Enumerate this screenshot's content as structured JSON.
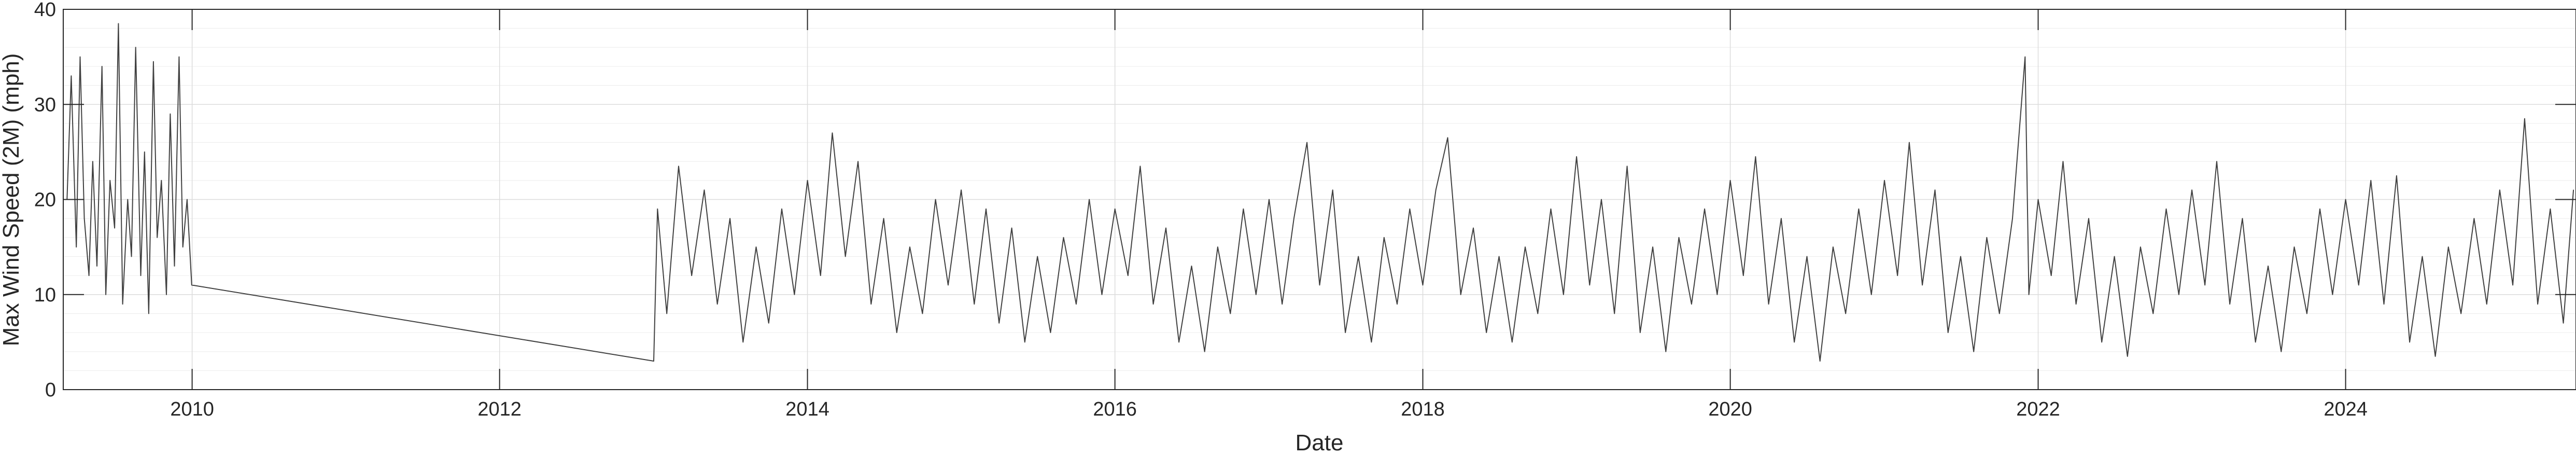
{
  "chart_data": {
    "type": "line",
    "title": "",
    "xlabel": "Date",
    "ylabel": "Max Wind Speed (2M) (mph)",
    "xlim": [
      "2009-03-01",
      "2025-07-01"
    ],
    "ylim": [
      0,
      40
    ],
    "x_ticks": [
      "2010",
      "2012",
      "2014",
      "2016",
      "2018",
      "2020",
      "2022",
      "2024"
    ],
    "y_ticks": [
      0,
      10,
      20,
      30,
      40
    ],
    "grid": true,
    "minor_grid": true,
    "line_color": "#404040",
    "series": [
      {
        "values_note_free": true,
        "points": [
          [
            "2009-03-10",
            20
          ],
          [
            "2009-03-20",
            33
          ],
          [
            "2009-04-01",
            15
          ],
          [
            "2009-04-10",
            35
          ],
          [
            "2009-04-20",
            18
          ],
          [
            "2009-05-01",
            12
          ],
          [
            "2009-05-10",
            24
          ],
          [
            "2009-05-20",
            13
          ],
          [
            "2009-06-01",
            34
          ],
          [
            "2009-06-10",
            10
          ],
          [
            "2009-06-20",
            22
          ],
          [
            "2009-07-01",
            17
          ],
          [
            "2009-07-10",
            38.5
          ],
          [
            "2009-07-20",
            9
          ],
          [
            "2009-08-01",
            20
          ],
          [
            "2009-08-10",
            14
          ],
          [
            "2009-08-20",
            36
          ],
          [
            "2009-09-01",
            12
          ],
          [
            "2009-09-10",
            25
          ],
          [
            "2009-09-20",
            8
          ],
          [
            "2009-10-01",
            34.5
          ],
          [
            "2009-10-10",
            16
          ],
          [
            "2009-10-20",
            22
          ],
          [
            "2009-11-01",
            10
          ],
          [
            "2009-11-10",
            29
          ],
          [
            "2009-11-20",
            13
          ],
          [
            "2009-12-01",
            35
          ],
          [
            "2009-12-10",
            15
          ],
          [
            "2009-12-20",
            20
          ],
          [
            "2009-12-31",
            11
          ],
          [
            "2013-01-01",
            3
          ],
          [
            "2013-01-10",
            19
          ],
          [
            "2013-02-01",
            8
          ],
          [
            "2013-03-01",
            23.5
          ],
          [
            "2013-04-01",
            12
          ],
          [
            "2013-05-01",
            21
          ],
          [
            "2013-06-01",
            9
          ],
          [
            "2013-07-01",
            18
          ],
          [
            "2013-08-01",
            5
          ],
          [
            "2013-09-01",
            15
          ],
          [
            "2013-10-01",
            7
          ],
          [
            "2013-11-01",
            19
          ],
          [
            "2013-12-01",
            10
          ],
          [
            "2014-01-01",
            22
          ],
          [
            "2014-02-01",
            12
          ],
          [
            "2014-03-01",
            27
          ],
          [
            "2014-04-01",
            14
          ],
          [
            "2014-05-01",
            24
          ],
          [
            "2014-06-01",
            9
          ],
          [
            "2014-07-01",
            18
          ],
          [
            "2014-08-01",
            6
          ],
          [
            "2014-09-01",
            15
          ],
          [
            "2014-10-01",
            8
          ],
          [
            "2014-11-01",
            20
          ],
          [
            "2014-12-01",
            11
          ],
          [
            "2015-01-01",
            21
          ],
          [
            "2015-02-01",
            9
          ],
          [
            "2015-03-01",
            19
          ],
          [
            "2015-04-01",
            7
          ],
          [
            "2015-05-01",
            17
          ],
          [
            "2015-06-01",
            5
          ],
          [
            "2015-07-01",
            14
          ],
          [
            "2015-08-01",
            6
          ],
          [
            "2015-09-01",
            16
          ],
          [
            "2015-10-01",
            9
          ],
          [
            "2015-11-01",
            20
          ],
          [
            "2015-12-01",
            10
          ],
          [
            "2016-01-01",
            19
          ],
          [
            "2016-02-01",
            12
          ],
          [
            "2016-03-01",
            23.5
          ],
          [
            "2016-04-01",
            9
          ],
          [
            "2016-05-01",
            17
          ],
          [
            "2016-06-01",
            5
          ],
          [
            "2016-07-01",
            13
          ],
          [
            "2016-08-01",
            4
          ],
          [
            "2016-09-01",
            15
          ],
          [
            "2016-10-01",
            8
          ],
          [
            "2016-11-01",
            19
          ],
          [
            "2016-12-01",
            10
          ],
          [
            "2017-01-01",
            20
          ],
          [
            "2017-02-01",
            9
          ],
          [
            "2017-03-01",
            18
          ],
          [
            "2017-04-01",
            26
          ],
          [
            "2017-05-01",
            11
          ],
          [
            "2017-06-01",
            21
          ],
          [
            "2017-07-01",
            6
          ],
          [
            "2017-08-01",
            14
          ],
          [
            "2017-09-01",
            5
          ],
          [
            "2017-10-01",
            16
          ],
          [
            "2017-11-01",
            9
          ],
          [
            "2017-12-01",
            19
          ],
          [
            "2018-01-01",
            11
          ],
          [
            "2018-02-01",
            21
          ],
          [
            "2018-03-01",
            26.5
          ],
          [
            "2018-04-01",
            10
          ],
          [
            "2018-05-01",
            17
          ],
          [
            "2018-06-01",
            6
          ],
          [
            "2018-07-01",
            14
          ],
          [
            "2018-08-01",
            5
          ],
          [
            "2018-09-01",
            15
          ],
          [
            "2018-10-01",
            8
          ],
          [
            "2018-11-01",
            19
          ],
          [
            "2018-12-01",
            10
          ],
          [
            "2019-01-01",
            24.5
          ],
          [
            "2019-02-01",
            11
          ],
          [
            "2019-03-01",
            20
          ],
          [
            "2019-04-01",
            8
          ],
          [
            "2019-05-01",
            23.5
          ],
          [
            "2019-06-01",
            6
          ],
          [
            "2019-07-01",
            15
          ],
          [
            "2019-08-01",
            4
          ],
          [
            "2019-09-01",
            16
          ],
          [
            "2019-10-01",
            9
          ],
          [
            "2019-11-01",
            19
          ],
          [
            "2019-12-01",
            10
          ],
          [
            "2020-01-01",
            22
          ],
          [
            "2020-02-01",
            12
          ],
          [
            "2020-03-01",
            24.5
          ],
          [
            "2020-04-01",
            9
          ],
          [
            "2020-05-01",
            18
          ],
          [
            "2020-06-01",
            5
          ],
          [
            "2020-07-01",
            14
          ],
          [
            "2020-08-01",
            3
          ],
          [
            "2020-09-01",
            15
          ],
          [
            "2020-10-01",
            8
          ],
          [
            "2020-11-01",
            19
          ],
          [
            "2020-12-01",
            10
          ],
          [
            "2021-01-01",
            22
          ],
          [
            "2021-02-01",
            12
          ],
          [
            "2021-03-01",
            26
          ],
          [
            "2021-04-01",
            11
          ],
          [
            "2021-05-01",
            21
          ],
          [
            "2021-06-01",
            6
          ],
          [
            "2021-07-01",
            14
          ],
          [
            "2021-08-01",
            4
          ],
          [
            "2021-09-01",
            16
          ],
          [
            "2021-10-01",
            8
          ],
          [
            "2021-11-01",
            18
          ],
          [
            "2021-12-01",
            35
          ],
          [
            "2021-12-10",
            10
          ],
          [
            "2022-01-01",
            20
          ],
          [
            "2022-02-01",
            12
          ],
          [
            "2022-03-01",
            24
          ],
          [
            "2022-04-01",
            9
          ],
          [
            "2022-05-01",
            18
          ],
          [
            "2022-06-01",
            5
          ],
          [
            "2022-07-01",
            14
          ],
          [
            "2022-08-01",
            3.5
          ],
          [
            "2022-09-01",
            15
          ],
          [
            "2022-10-01",
            8
          ],
          [
            "2022-11-01",
            19
          ],
          [
            "2022-12-01",
            10
          ],
          [
            "2023-01-01",
            21
          ],
          [
            "2023-02-01",
            11
          ],
          [
            "2023-03-01",
            24
          ],
          [
            "2023-04-01",
            9
          ],
          [
            "2023-05-01",
            18
          ],
          [
            "2023-06-01",
            5
          ],
          [
            "2023-07-01",
            13
          ],
          [
            "2023-08-01",
            4
          ],
          [
            "2023-09-01",
            15
          ],
          [
            "2023-10-01",
            8
          ],
          [
            "2023-11-01",
            19
          ],
          [
            "2023-12-01",
            10
          ],
          [
            "2024-01-01",
            20
          ],
          [
            "2024-02-01",
            11
          ],
          [
            "2024-03-01",
            22
          ],
          [
            "2024-04-01",
            9
          ],
          [
            "2024-05-01",
            22.5
          ],
          [
            "2024-06-01",
            5
          ],
          [
            "2024-07-01",
            14
          ],
          [
            "2024-08-01",
            3.5
          ],
          [
            "2024-09-01",
            15
          ],
          [
            "2024-10-01",
            8
          ],
          [
            "2024-11-01",
            18
          ],
          [
            "2024-12-01",
            9
          ],
          [
            "2025-01-01",
            21
          ],
          [
            "2025-02-01",
            11
          ],
          [
            "2025-03-01",
            28.5
          ],
          [
            "2025-04-01",
            9
          ],
          [
            "2025-05-01",
            19
          ],
          [
            "2025-06-01",
            7
          ],
          [
            "2025-06-25",
            21
          ]
        ]
      }
    ]
  }
}
